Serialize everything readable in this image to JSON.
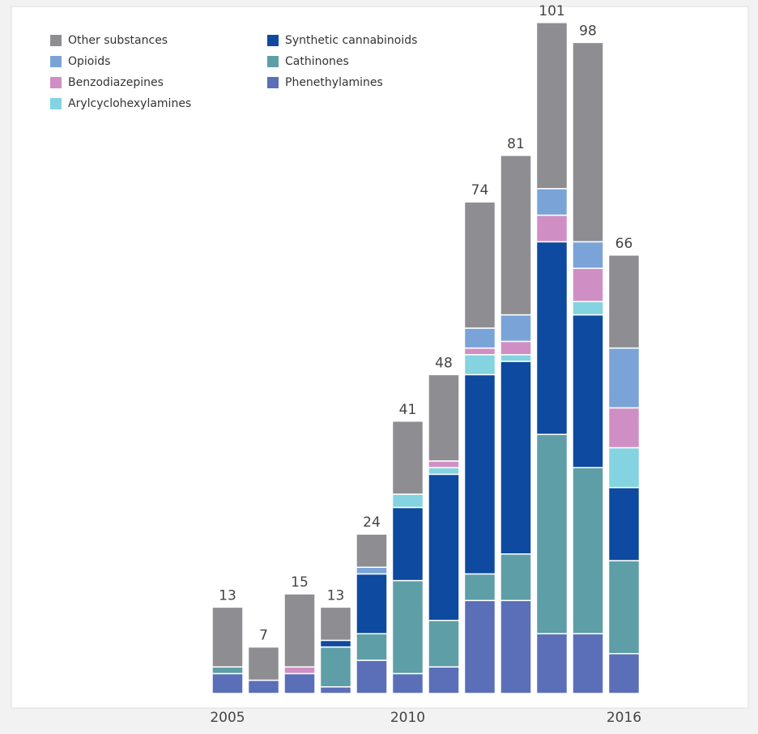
{
  "chart_data": {
    "type": "stacked-bar",
    "categories": [
      "2005",
      null,
      null,
      null,
      null,
      "2010",
      null,
      null,
      null,
      null,
      null,
      "2016"
    ],
    "totals": [
      13,
      7,
      15,
      13,
      24,
      41,
      48,
      74,
      81,
      101,
      98,
      66
    ],
    "series": [
      {
        "name": "Other substances",
        "color": "#8e8e92",
        "values": [
          9,
          5,
          11,
          5,
          5,
          11,
          13,
          19,
          24,
          25,
          30,
          14
        ]
      },
      {
        "name": "Synthetic cannabinoids",
        "color": "#0d4aa0",
        "values": [
          0,
          0,
          0,
          1,
          9,
          11,
          22,
          30,
          29,
          29,
          23,
          11
        ]
      },
      {
        "name": "Opioids",
        "color": "#7aa3d8",
        "values": [
          0,
          0,
          0,
          0,
          1,
          0,
          0,
          3,
          4,
          4,
          4,
          9
        ]
      },
      {
        "name": "Cathinones",
        "color": "#5e9ea6",
        "values": [
          1,
          0,
          0,
          6,
          4,
          14,
          7,
          4,
          7,
          30,
          25,
          14
        ]
      },
      {
        "name": "Benzodiazepines",
        "color": "#d08fc4",
        "values": [
          0,
          0,
          1,
          0,
          0,
          0,
          1,
          1,
          2,
          4,
          5,
          6
        ]
      },
      {
        "name": "Phenethylamines",
        "color": "#5b6fb8",
        "values": [
          3,
          2,
          3,
          1,
          5,
          3,
          4,
          14,
          14,
          9,
          9,
          6
        ]
      },
      {
        "name": "Arylcyclohexylamines",
        "color": "#84d3e0",
        "values": [
          0,
          0,
          0,
          0,
          0,
          2,
          1,
          3,
          1,
          0,
          2,
          6
        ]
      }
    ]
  }
}
